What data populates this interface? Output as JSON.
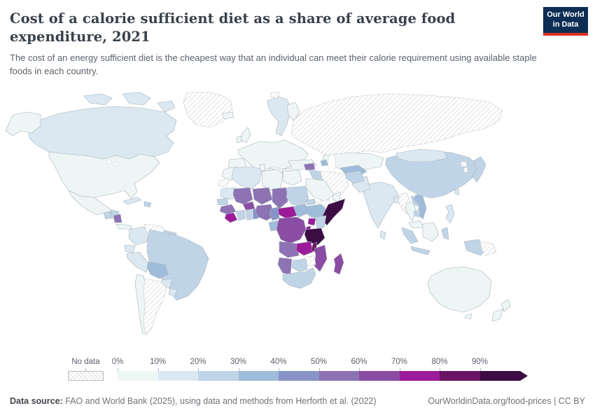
{
  "header": {
    "title": "Cost of a calorie sufficient diet as a share of average food expenditure, 2021",
    "subtitle": "The cost of an energy sufficient diet is the cheapest way that an individual can meet their calorie requirement using available staple foods in each country.",
    "logo": {
      "line1": "Our World",
      "line2": "in Data",
      "bg_color": "#0d2e54",
      "accent_color": "#e0301e"
    }
  },
  "legend": {
    "no_data_label": "No data",
    "tick_labels": [
      "0%",
      "10%",
      "20%",
      "30%",
      "40%",
      "50%",
      "60%",
      "70%",
      "80%",
      "90%"
    ],
    "bin_colors": [
      "#edf6f4",
      "#dbe8f1",
      "#c0d4e7",
      "#9fbcda",
      "#8894c7",
      "#8d72b4",
      "#8a4da3",
      "#9c1b9a",
      "#6b1464",
      "#3d0c45"
    ],
    "no_data_border": "#c9c9c9"
  },
  "map": {
    "border_color": "#a7b3bb"
  },
  "chart_data": {
    "type": "choropleth-map",
    "title": "Cost of a calorie sufficient diet as a share of average food expenditure, 2021",
    "unit": "%",
    "bins": [
      "0-10%",
      "10-20%",
      "20-30%",
      "30-40%",
      "40-50%",
      "50-60%",
      "60-70%",
      "70-80%",
      "80-90%",
      "90%+"
    ],
    "countries": {
      "greenland": "nodata",
      "canada": 1,
      "canada-arctic-1": 1,
      "canada-arctic-2": 1,
      "canada-arctic-3": 1,
      "alaska": 0,
      "usa": 0,
      "mexico": 0,
      "guatemala": 2,
      "honduras": 2,
      "nicaragua": 5,
      "costa-rica-panama": 0,
      "cuba": 1,
      "hispaniola": 2,
      "colombia": 1,
      "venezuela": "nodata",
      "guianas": 2,
      "ecuador": 1,
      "peru": 1,
      "brazil": 2,
      "bolivia": 3,
      "paraguay": 1,
      "chile": 0,
      "argentina": "nodata",
      "uruguay": 1,
      "iceland": 0,
      "uk": 0,
      "ireland": 0,
      "norway-sweden": 1,
      "finland": 0,
      "europe-main": 0,
      "iberia": 0,
      "italy": 0,
      "balkans-greece": 0,
      "turkey": 0,
      "russia": "nodata",
      "svalbard": "nodata",
      "kazakhstan": 0,
      "uzbek-turkmen": 3,
      "azerbaijan": 3,
      "china": 2,
      "mongolia": 1,
      "india": 1,
      "pakistan": 1,
      "afghanistan": 2,
      "iran": "nodata",
      "iraq": 2,
      "syria": 5,
      "saudi-arabia": 0,
      "yemen": "nodata",
      "oman": 0,
      "bangladesh": 1,
      "myanmar": "nodata",
      "thailand": 0,
      "laos": 2,
      "vietnam": 3,
      "cambodia": 2,
      "malaysia": 0,
      "sri-lanka": 1,
      "japan": 2,
      "south-korea": 0,
      "north-korea": "nodata",
      "taiwan": 1,
      "philippines": 1,
      "sumatra": 2,
      "java": 2,
      "borneo": 0,
      "sulawesi": 2,
      "west-papua": 2,
      "papua-new-guinea": "nodata",
      "morocco": 0,
      "western-sahara": "nodata",
      "algeria": 1,
      "tunisia": 0,
      "libya": 0,
      "egypt": 0,
      "mauritania": 1,
      "senegal": 2,
      "guinea": 5,
      "sierra-leone-liberia": 7,
      "mali": 5,
      "burkina-faso": 6,
      "ivory-coast": 2,
      "ghana": 2,
      "togo-benin": 4,
      "niger": 5,
      "nigeria": 5,
      "chad": 5,
      "sudan": 2,
      "eritrea": 2,
      "ethiopia": 3,
      "somalia": 9,
      "south-sudan": 3,
      "central-african-republic": 7,
      "cameroon": 4,
      "gabon-congo": 3,
      "drc": 6,
      "uganda": 7,
      "kenya": 2,
      "rwanda-burundi": 7,
      "tanzania": 9,
      "angola": 5,
      "zambia": 7,
      "malawi": 8,
      "mozambique": 6,
      "zimbabwe": "nodata",
      "botswana": 2,
      "namibia": 5,
      "south-africa": 2,
      "madagascar": 6,
      "australia": 0,
      "tasmania": 0,
      "new-zealand-north": 0,
      "new-zealand-south": 0
    }
  },
  "footer": {
    "source_label": "Data source:",
    "source_text": " FAO and World Bank (2025), using data and methods from Herforth et al. (2022)",
    "links_text": "OurWorldinData.org/food-prices | CC BY"
  }
}
